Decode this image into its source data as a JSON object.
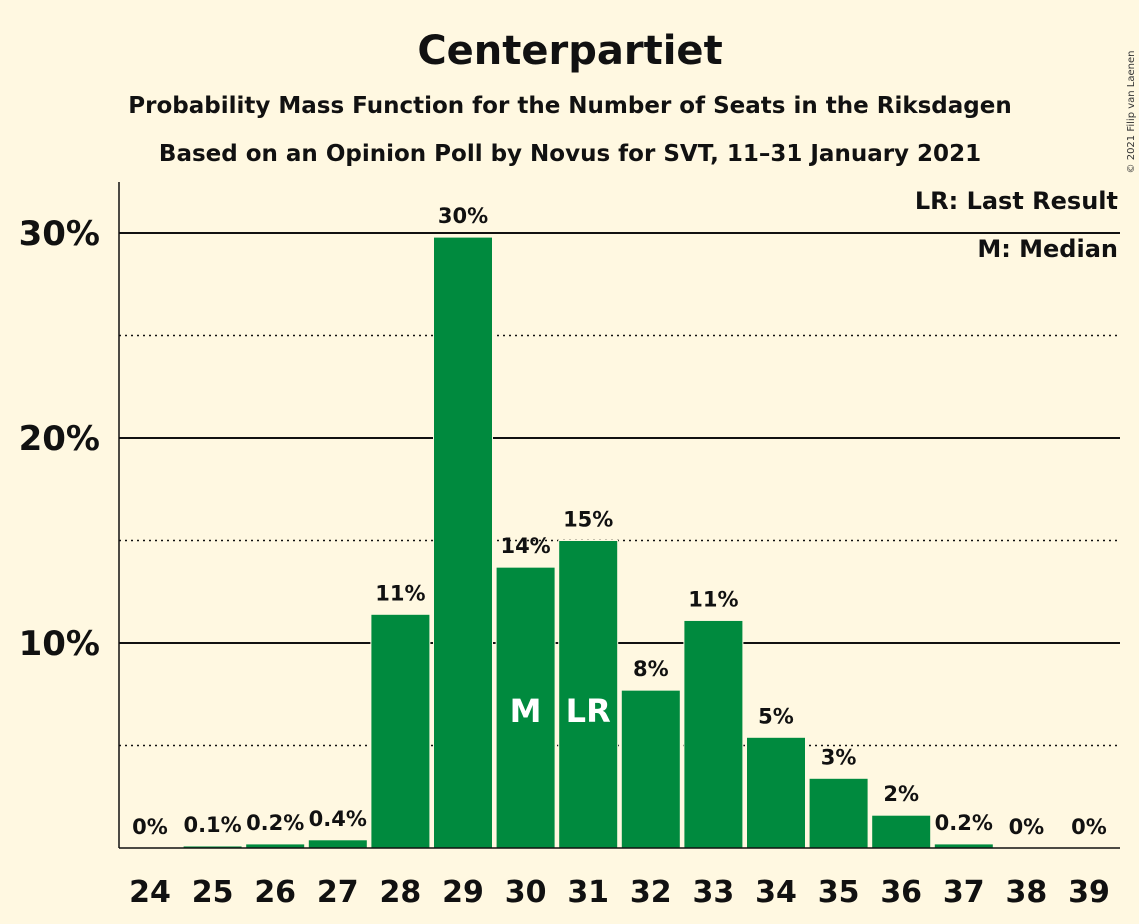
{
  "copyright": "© 2021 Filip van Laenen",
  "chart_data": {
    "type": "bar",
    "title": "Centerpartiet",
    "subtitle_1": "Probability Mass Function for the Number of Seats in the Riksdagen",
    "subtitle_2": "Based on an Opinion Poll by Novus for SVT, 11–31 January 2021",
    "xlabel": "",
    "ylabel": "",
    "categories": [
      "24",
      "25",
      "26",
      "27",
      "28",
      "29",
      "30",
      "31",
      "32",
      "33",
      "34",
      "35",
      "36",
      "37",
      "38",
      "39"
    ],
    "values": [
      0,
      0.1,
      0.2,
      0.4,
      11.4,
      29.8,
      13.7,
      15.0,
      7.7,
      11.1,
      5.4,
      3.4,
      1.6,
      0.2,
      0,
      0
    ],
    "value_labels": [
      "0%",
      "0.1%",
      "0.2%",
      "0.4%",
      "11%",
      "30%",
      "14%",
      "15%",
      "8%",
      "11%",
      "5%",
      "3%",
      "2%",
      "0.2%",
      "0%",
      "0%"
    ],
    "ylim": [
      0,
      32.5
    ],
    "y_ticks": [
      {
        "value": 10,
        "label": "10%"
      },
      {
        "value": 20,
        "label": "20%"
      },
      {
        "value": 30,
        "label": "30%"
      }
    ],
    "minor_gridlines": [
      5,
      15,
      25
    ],
    "grid": true,
    "bar_color": "#008A3E",
    "markers": [
      {
        "category": "30",
        "label": "M"
      },
      {
        "category": "31",
        "label": "LR"
      }
    ],
    "legend": {
      "placement": "top-right",
      "entries": [
        "LR: Last Result",
        "M: Median"
      ]
    }
  }
}
